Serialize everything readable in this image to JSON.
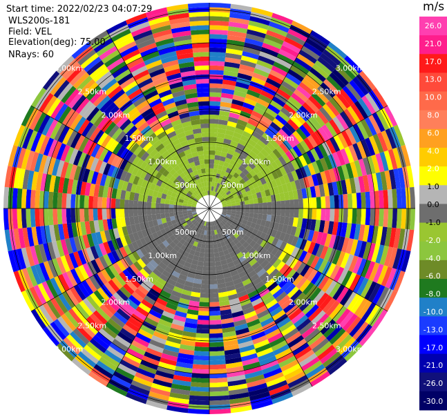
{
  "info": {
    "start_time": "Start time: 2022/02/23 04:07:29",
    "site": "WLS200s-181",
    "field": "Field: VEL",
    "elevation": "Elevation(deg): 75.00",
    "nrays": "NRays: 60"
  },
  "colorbar": {
    "unit": "m/s",
    "ticks": [
      "26.0",
      "21.0",
      "17.0",
      "13.0",
      "10.0",
      "8.0",
      "6.0",
      "4.0",
      "2.0",
      "1.0",
      "0.0",
      "-1.0",
      "-2.0",
      "-4.0",
      "-6.0",
      "-8.0",
      "-10.0",
      "-13.0",
      "-17.0",
      "-21.0",
      "-26.0",
      "-30.0"
    ],
    "colors": [
      "#ff3fb0",
      "#ff1e8c",
      "#ff1a1a",
      "#ff4a3a",
      "#ff6a4a",
      "#ff7f5a",
      "#ffa020",
      "#ffcc00",
      "#ffff00",
      "#b5b5b5",
      "#6e6e6e",
      "#9ac631",
      "#8cc63e",
      "#6e8b27",
      "#1f7a1f",
      "#2080c8",
      "#1a3cff",
      "#0000ff",
      "#0000b0",
      "#10107a",
      "#000066"
    ]
  },
  "chart_data": {
    "type": "heatmap",
    "projection": "polar (PPI scan)",
    "nrays": 60,
    "range_rings_km": [
      "500m",
      "1.00km",
      "1.50km",
      "2.00km",
      "2.50km",
      "3.00km"
    ],
    "near_field": "predominantly 0.0 to -2.0 m/s (gray / yellow-green) within ~1.7 km",
    "far_field": "noisy velocities spanning -30 to 26 m/s beyond ~1.8 km"
  }
}
